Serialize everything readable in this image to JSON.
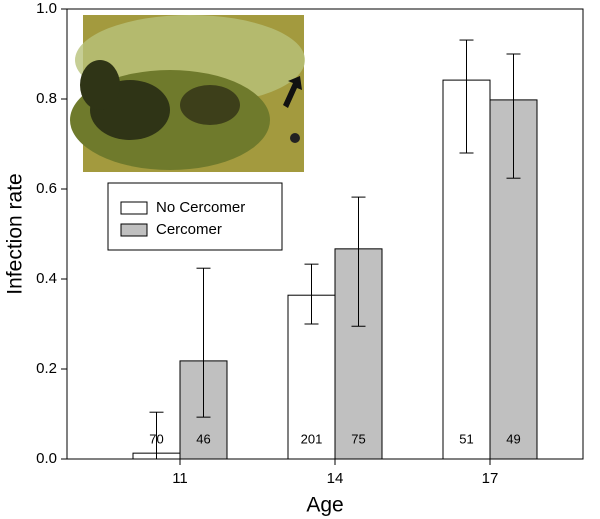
{
  "chart_data": {
    "type": "bar",
    "xlabel": "Age",
    "ylabel": "Infection rate",
    "categories": [
      "11",
      "14",
      "17"
    ],
    "series": [
      {
        "name": "No Cercomer",
        "color": "#ffffff",
        "values": [
          0.013,
          0.364,
          0.842
        ],
        "err_low": [
          0.0,
          0.3,
          0.68
        ],
        "err_high": [
          0.104,
          0.433,
          0.931
        ],
        "counts": [
          70,
          201,
          51
        ]
      },
      {
        "name": "Cercomer",
        "color": "#c0c0c0",
        "values": [
          0.218,
          0.467,
          0.798
        ],
        "err_low": [
          0.093,
          0.295,
          0.624
        ],
        "err_high": [
          0.424,
          0.582,
          0.9
        ],
        "counts": [
          46,
          75,
          49
        ]
      }
    ],
    "ylim": [
      0,
      1
    ],
    "yticks": [
      {
        "value": 0,
        "label": "0.0"
      },
      {
        "value": 0.2,
        "label": "0.2"
      },
      {
        "value": 0.4,
        "label": "0.4"
      },
      {
        "value": 0.6,
        "label": "0.6"
      },
      {
        "value": 0.8,
        "label": "0.8"
      },
      {
        "value": 1,
        "label": "1.0"
      }
    ]
  }
}
